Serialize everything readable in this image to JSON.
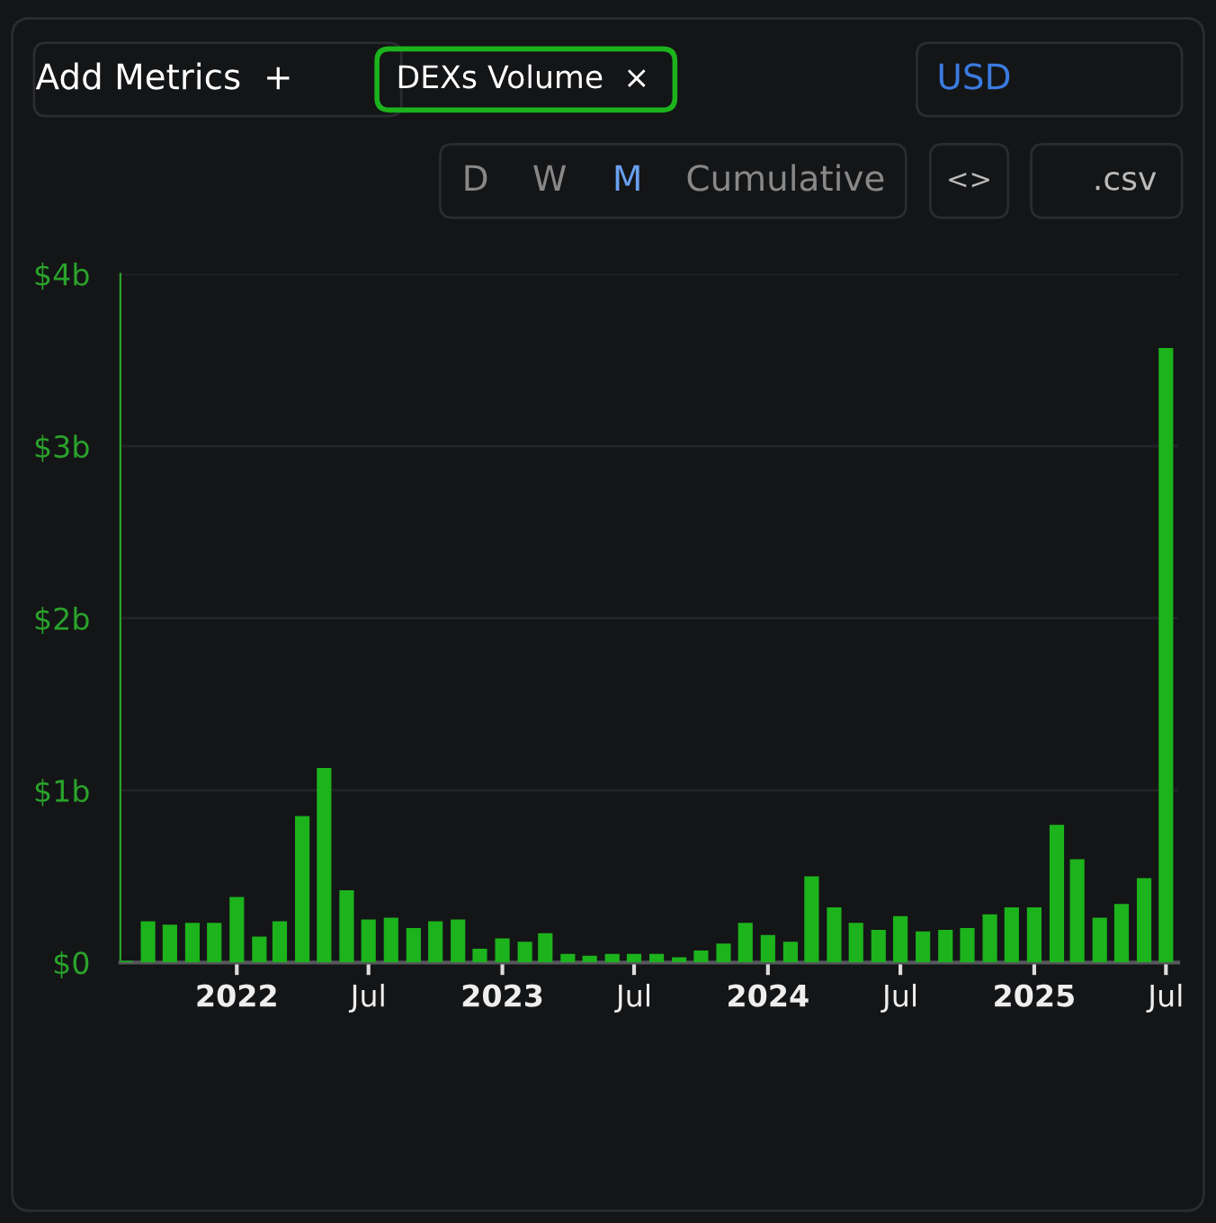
{
  "chart_data": {
    "type": "bar",
    "x": [
      "2021-08",
      "2021-09",
      "2021-10",
      "2021-11",
      "2021-12",
      "2022-01",
      "2022-02",
      "2022-03",
      "2022-04",
      "2022-05",
      "2022-06",
      "2022-07",
      "2022-08",
      "2022-09",
      "2022-10",
      "2022-11",
      "2022-12",
      "2023-01",
      "2023-02",
      "2023-03",
      "2023-04",
      "2023-05",
      "2023-06",
      "2023-07",
      "2023-08",
      "2023-09",
      "2023-10",
      "2023-11",
      "2023-12",
      "2024-01",
      "2024-02",
      "2024-03",
      "2024-04",
      "2024-05",
      "2024-06",
      "2024-07",
      "2024-08",
      "2024-09",
      "2024-10",
      "2024-11",
      "2024-12",
      "2025-01",
      "2025-02",
      "2025-03",
      "2025-04",
      "2025-05",
      "2025-06",
      "2025-07"
    ],
    "values": [
      0.01,
      0.24,
      0.22,
      0.23,
      0.23,
      0.38,
      0.15,
      0.24,
      0.85,
      1.13,
      0.42,
      0.25,
      0.26,
      0.2,
      0.24,
      0.25,
      0.08,
      0.14,
      0.12,
      0.17,
      0.05,
      0.04,
      0.05,
      0.05,
      0.05,
      0.03,
      0.07,
      0.11,
      0.23,
      0.16,
      0.12,
      0.5,
      0.32,
      0.23,
      0.19,
      0.27,
      0.18,
      0.19,
      0.2,
      0.28,
      0.32,
      0.32,
      0.8,
      0.6,
      0.26,
      0.34,
      0.49,
      3.57
    ],
    "color": "#1cb31c",
    "ylim": [
      0,
      4
    ],
    "yticks": [
      {
        "value": 0,
        "label": "$0"
      },
      {
        "value": 1,
        "label": "$1b"
      },
      {
        "value": 2,
        "label": "$2b"
      },
      {
        "value": 3,
        "label": "$3b"
      },
      {
        "value": 4,
        "label": "$4b"
      }
    ],
    "xlim": [
      "2021-07-25",
      "2025-07-18"
    ],
    "xticks": [
      {
        "value": "2022-01",
        "label": "2022"
      },
      {
        "value": "2022-07",
        "label": "Jul"
      },
      {
        "value": "2023-01",
        "label": "2023"
      },
      {
        "value": "2023-07",
        "label": "Jul"
      },
      {
        "value": "2024-01",
        "label": "2024"
      },
      {
        "value": "2024-07",
        "label": "Jul"
      },
      {
        "value": "2025-01",
        "label": "2025"
      },
      {
        "value": "2025-07",
        "label": "Jul"
      }
    ],
    "grid": "y",
    "annotations": [
      "Add Metrics  +",
      "DEXs Volume  ×",
      "USD",
      "D",
      "W",
      "M",
      "Cumulative",
      "<>",
      ".csv"
    ]
  }
}
